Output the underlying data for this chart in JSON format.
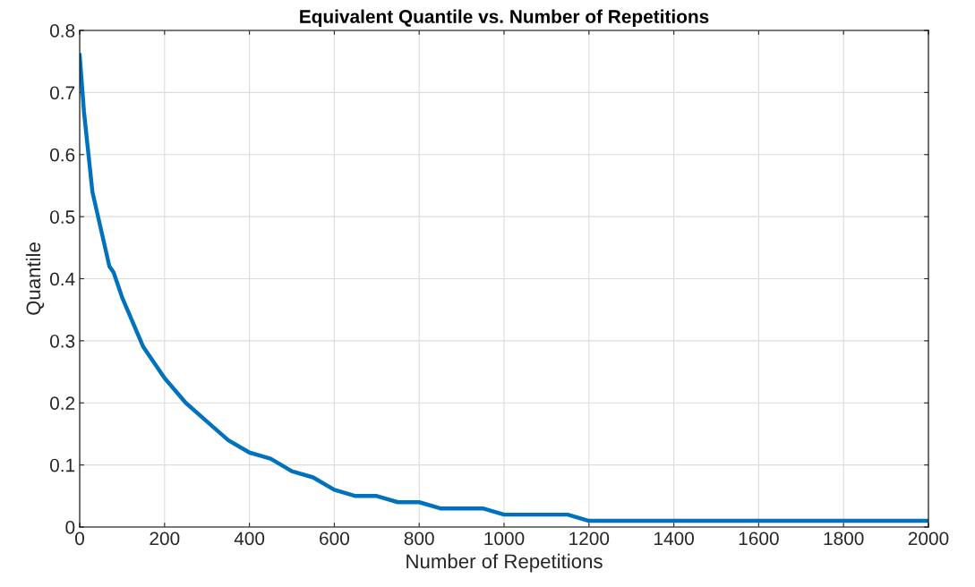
{
  "chart_data": {
    "type": "line",
    "title": "Equivalent Quantile vs. Number of Repetitions",
    "xlabel": "Number of Repetitions",
    "ylabel": "Quantile",
    "series": [
      {
        "color": "#0072bd",
        "x": [
          0,
          10,
          30,
          50,
          70,
          80,
          100,
          150,
          200,
          250,
          300,
          350,
          400,
          450,
          500,
          550,
          600,
          650,
          700,
          750,
          800,
          850,
          900,
          950,
          1000,
          1050,
          1100,
          1150,
          1200,
          1400,
          1600,
          1800,
          2000
        ],
        "values": [
          0.76,
          0.67,
          0.54,
          0.48,
          0.42,
          0.41,
          0.37,
          0.29,
          0.24,
          0.2,
          0.17,
          0.14,
          0.12,
          0.11,
          0.09,
          0.08,
          0.06,
          0.05,
          0.05,
          0.04,
          0.04,
          0.03,
          0.03,
          0.03,
          0.02,
          0.02,
          0.02,
          0.02,
          0.01,
          0.01,
          0.01,
          0.01,
          0.01
        ]
      }
    ],
    "xlim": [
      0,
      2000
    ],
    "xticks": [
      0,
      200,
      400,
      600,
      800,
      1000,
      1200,
      1400,
      1600,
      1800,
      2000
    ],
    "ylim": [
      0,
      0.8
    ],
    "yticks": [
      0,
      0.1,
      0.2,
      0.3,
      0.4,
      0.5,
      0.6,
      0.7,
      0.8
    ],
    "grid": true,
    "marker": "none",
    "line_style": "solid"
  }
}
